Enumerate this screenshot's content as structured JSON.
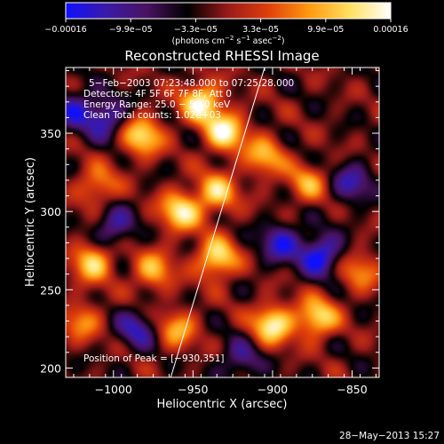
{
  "chart_data": {
    "type": "heatmap",
    "title": "Reconstructed RHESSI Image",
    "xlabel": "Heliocentric X (arcsec)",
    "ylabel": "Heliocentric Y (arcsec)",
    "xlim": [
      -1030,
      -833
    ],
    "ylim": [
      194,
      392
    ],
    "xticks": [
      -1000,
      -950,
      -900,
      -850
    ],
    "xtick_labels": [
      "−1000",
      "−950",
      "−900",
      "−850"
    ],
    "yticks": [
      200,
      250,
      300,
      350
    ],
    "ytick_labels": [
      "200",
      "250",
      "300",
      "350"
    ],
    "colorbar": {
      "range": [
        -0.00016,
        0.00016
      ],
      "tick_labels": [
        "−0.00016",
        "−9.9e−05",
        "−3.3e−05",
        "3.3e−05",
        "9.9e−05",
        "0.00016"
      ],
      "unit_main": "(photons cm",
      "unit_mid": " s",
      "unit_tail": " asec",
      "unit_end": ")",
      "exp1": "−2",
      "exp2": "−1",
      "exp3": "−2",
      "stops": [
        "#1010ff",
        "#3a1aa8",
        "#4a1260",
        "#000000",
        "#9a1a1a",
        "#e0400a",
        "#ff9a10",
        "#ffe060",
        "#ffffff"
      ]
    },
    "annotations": [
      "5−Feb−2003 07:23:48.000 to 07:25:28.000",
      "Detectors: 4F 5F 6F 7F 8F, Att 0",
      "Energy Range: 25.0 − 50.0 keV",
      "Clean     Total counts: 1.02e+03"
    ],
    "peak_label": "Position of Peak = [−930,351]",
    "peak": {
      "x": -930,
      "y": 351
    },
    "limb_line": [
      {
        "x": -964,
        "y": 194
      },
      {
        "x": -905,
        "y": 392
      }
    ],
    "peaks": [
      {
        "x": -945,
        "y": 370,
        "v": 1.0
      },
      {
        "x": -930,
        "y": 351,
        "v": 1.0
      },
      {
        "x": -982,
        "y": 348,
        "v": 0.9
      },
      {
        "x": -958,
        "y": 300,
        "v": 0.95
      },
      {
        "x": -935,
        "y": 312,
        "v": 0.8
      },
      {
        "x": -1013,
        "y": 268,
        "v": 0.85
      },
      {
        "x": -935,
        "y": 270,
        "v": 0.95
      },
      {
        "x": -975,
        "y": 262,
        "v": 0.7
      },
      {
        "x": -900,
        "y": 228,
        "v": 1.0
      },
      {
        "x": -872,
        "y": 232,
        "v": 0.9
      },
      {
        "x": -1010,
        "y": 316,
        "v": 0.6
      },
      {
        "x": -905,
        "y": 335,
        "v": 0.7
      },
      {
        "x": -878,
        "y": 318,
        "v": 0.6
      },
      {
        "x": -960,
        "y": 225,
        "v": 0.65
      },
      {
        "x": -845,
        "y": 262,
        "v": 0.55
      },
      {
        "x": -1020,
        "y": 230,
        "v": 0.55
      }
    ],
    "dips": [
      {
        "x": -1005,
        "y": 360,
        "v": -0.7
      },
      {
        "x": -870,
        "y": 272,
        "v": -0.9
      },
      {
        "x": -895,
        "y": 280,
        "v": -0.7
      },
      {
        "x": -1025,
        "y": 365,
        "v": -0.6
      },
      {
        "x": -985,
        "y": 225,
        "v": -0.6
      },
      {
        "x": -850,
        "y": 318,
        "v": -0.6
      },
      {
        "x": -1000,
        "y": 290,
        "v": -0.6
      },
      {
        "x": -920,
        "y": 205,
        "v": -0.5
      }
    ]
  },
  "footer": {
    "timestamp": "28−May−2013 15:27"
  }
}
